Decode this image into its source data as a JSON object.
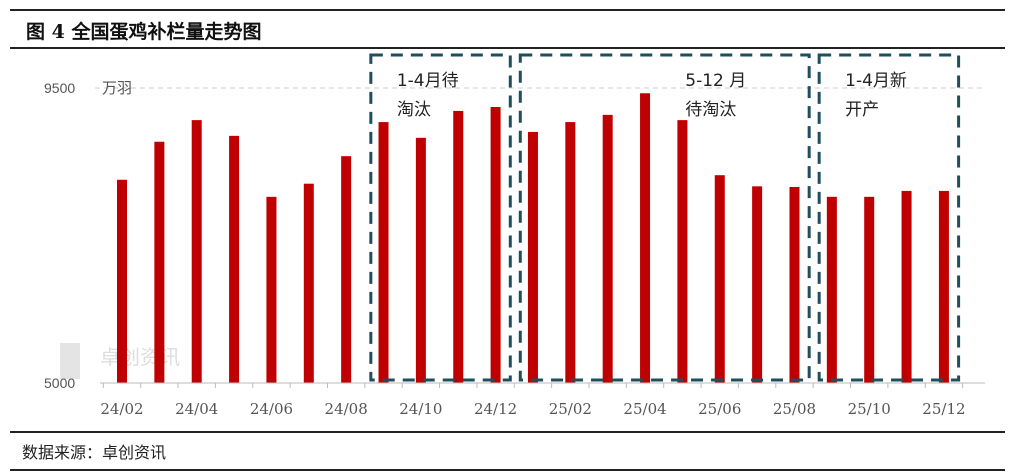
{
  "chart_data": {
    "type": "bar",
    "title": "图 4 全国蛋鸡补栏量走势图",
    "unit": "万羽",
    "ylim": [
      5000,
      9500
    ],
    "yticks": [
      "5000",
      "9500"
    ],
    "grid": true,
    "categories": [
      "24/02",
      "24/03",
      "24/04",
      "24/05",
      "24/06",
      "24/07",
      "24/08",
      "24/09",
      "24/10",
      "24/11",
      "24/12",
      "25/01",
      "25/02",
      "25/03",
      "25/04",
      "25/05",
      "25/06",
      "25/07",
      "25/08",
      "25/09",
      "25/10",
      "25/11",
      "25/12"
    ],
    "xtick_labels": [
      "24/02",
      "24/04",
      "24/06",
      "24/08",
      "24/10",
      "24/12",
      "25/02",
      "25/04",
      "25/06",
      "25/08",
      "25/10",
      "25/12"
    ],
    "values": [
      8100,
      8680,
      9010,
      8770,
      7840,
      8040,
      8460,
      8980,
      8740,
      9150,
      9210,
      8830,
      8980,
      9090,
      9420,
      9010,
      8170,
      8000,
      7990,
      7840,
      7840,
      7930,
      7930
    ],
    "bar_color": "#c00000",
    "annotations": [
      {
        "lines": [
          "1-4月待",
          "淘汰"
        ],
        "from": "24/09",
        "to": "24/12"
      },
      {
        "lines": [
          "5-12 月",
          "待淘汰"
        ],
        "from": "25/01",
        "to": "25/08"
      },
      {
        "lines": [
          "1-4月新",
          "开产"
        ],
        "from": "25/09",
        "to": "25/12"
      }
    ],
    "annotation_color": "#1f4e5f",
    "source": "数据来源：卓创资讯",
    "watermark": "卓创资讯"
  }
}
